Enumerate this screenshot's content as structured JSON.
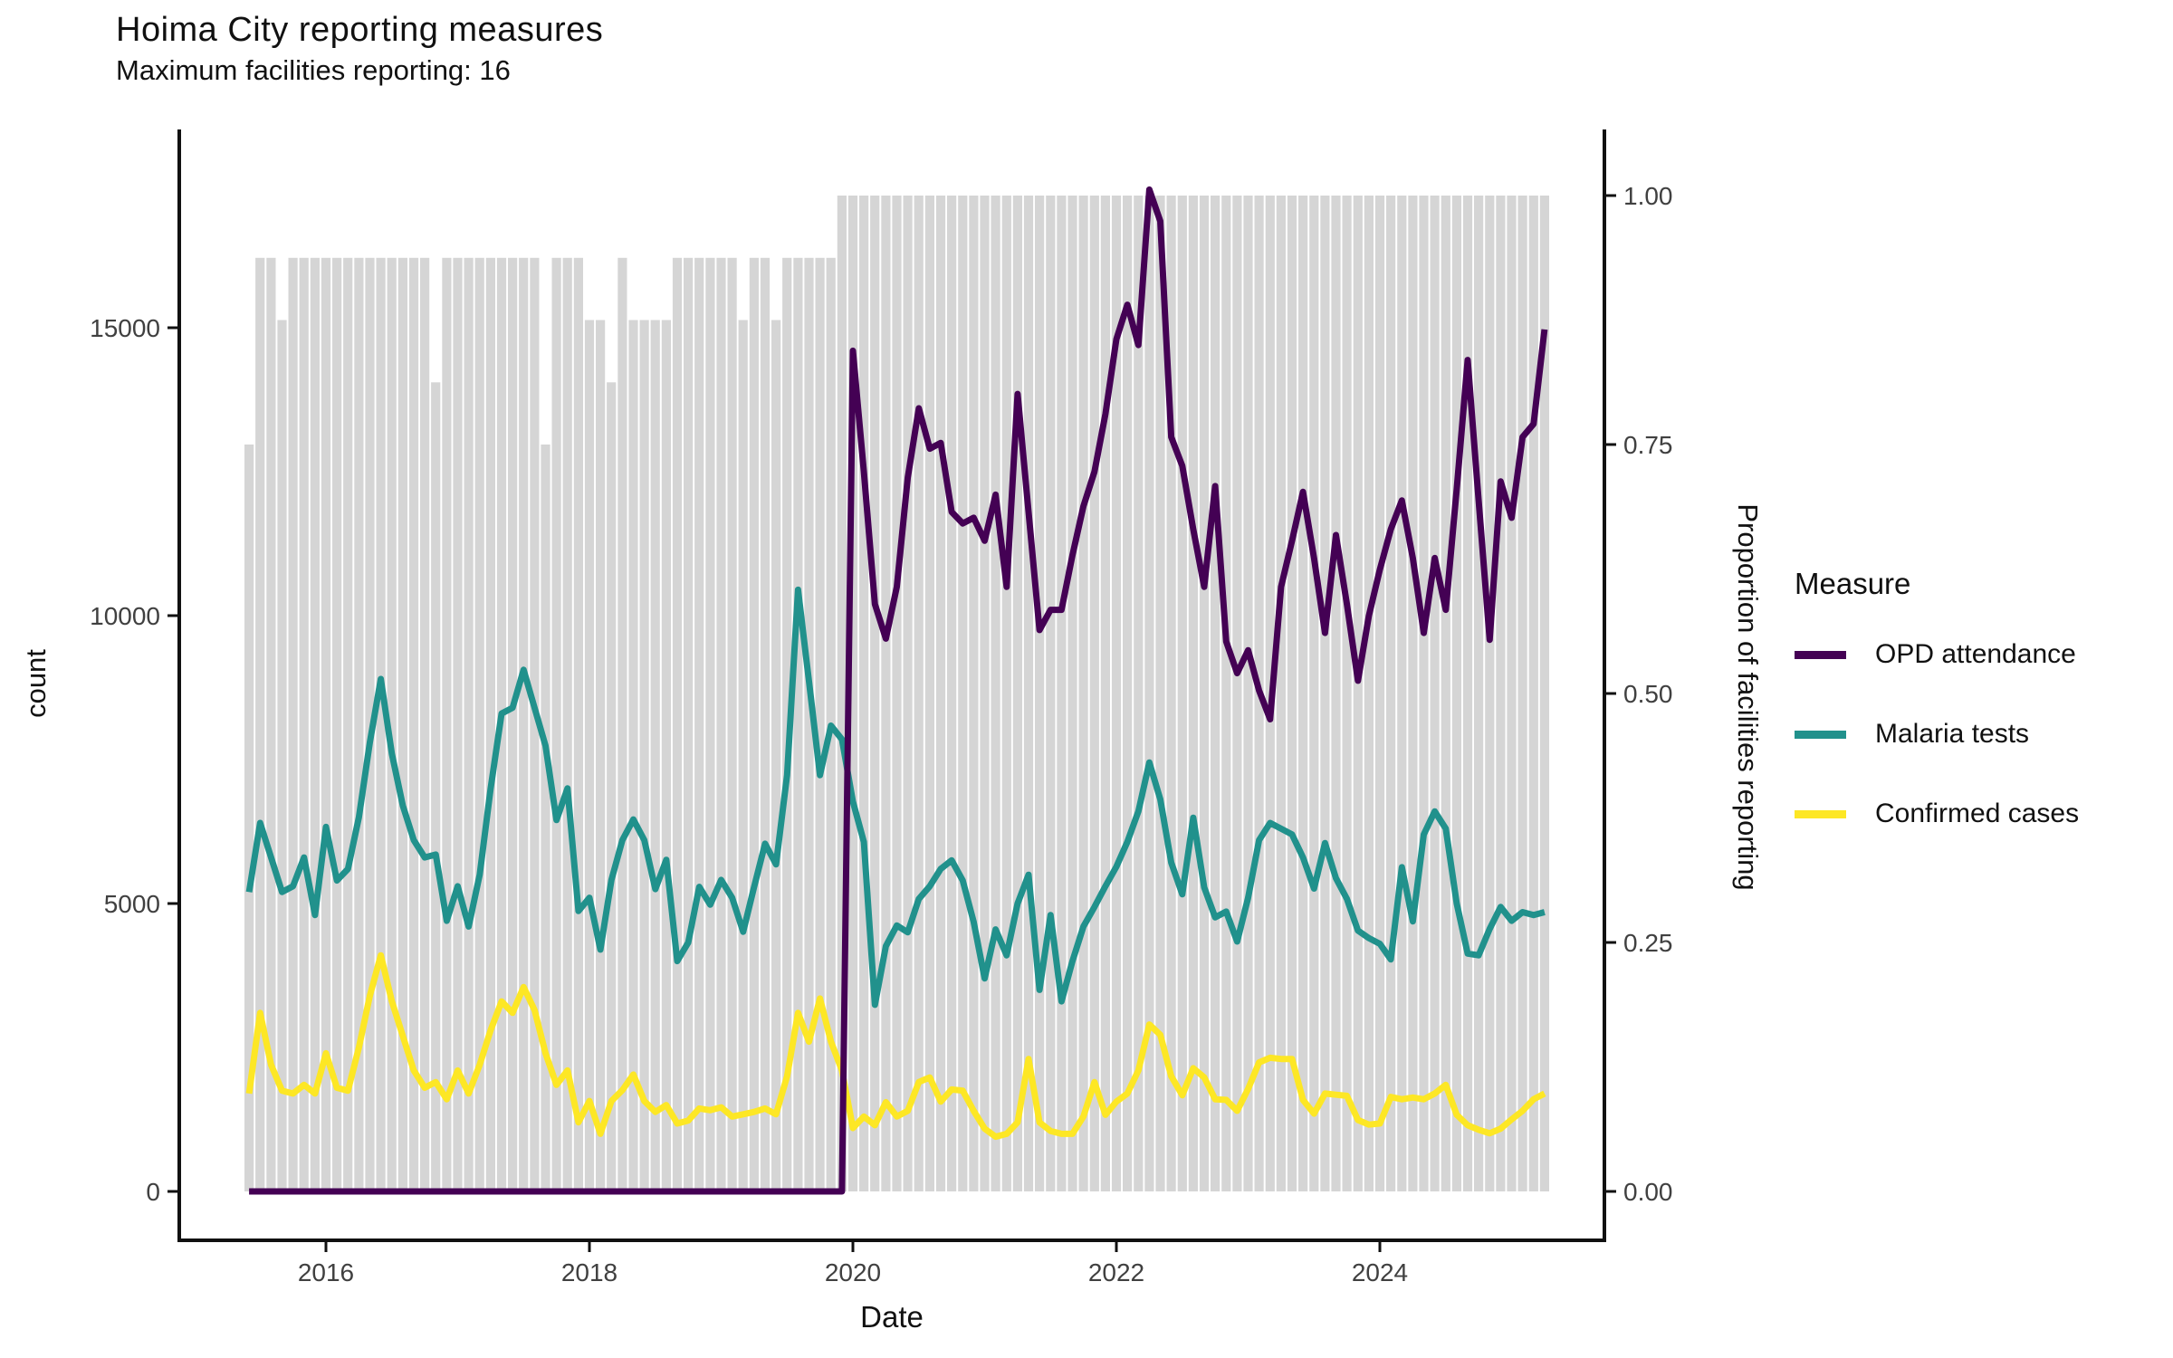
{
  "header": {
    "title": "Hoima City reporting measures",
    "subtitle": "Maximum facilities reporting: 16"
  },
  "chart_data": {
    "type": "line",
    "title": "Hoima City reporting measures",
    "subtitle": "Maximum facilities reporting: 16",
    "x_axis": {
      "label": "Date",
      "ticks": [
        "2016",
        "2018",
        "2020",
        "2022",
        "2024"
      ],
      "tick_years": [
        2016,
        2018,
        2020,
        2022,
        2024
      ]
    },
    "left_axis": {
      "label": "count",
      "ticks": [
        0,
        5000,
        10000,
        15000
      ],
      "tick_labels": [
        "0",
        "5000",
        "10000",
        "15000"
      ],
      "range": [
        0,
        18500
      ],
      "grid": false
    },
    "right_axis": {
      "label": "Proportion of facilities reporting",
      "ticks": [
        0,
        0.25,
        0.5,
        0.75,
        1.0
      ],
      "tick_labels": [
        "0.00",
        "0.25",
        "0.50",
        "0.75",
        "1.00"
      ],
      "range": [
        0,
        1.07
      ]
    },
    "legend": {
      "title": "Measure",
      "position": "right"
    },
    "max_facilities": 16,
    "months": [
      "2015-06",
      "2015-07",
      "2015-08",
      "2015-09",
      "2015-10",
      "2015-11",
      "2015-12",
      "2016-01",
      "2016-02",
      "2016-03",
      "2016-04",
      "2016-05",
      "2016-06",
      "2016-07",
      "2016-08",
      "2016-09",
      "2016-10",
      "2016-11",
      "2016-12",
      "2017-01",
      "2017-02",
      "2017-03",
      "2017-04",
      "2017-05",
      "2017-06",
      "2017-07",
      "2017-08",
      "2017-09",
      "2017-10",
      "2017-11",
      "2017-12",
      "2018-01",
      "2018-02",
      "2018-03",
      "2018-04",
      "2018-05",
      "2018-06",
      "2018-07",
      "2018-08",
      "2018-09",
      "2018-10",
      "2018-11",
      "2018-12",
      "2019-01",
      "2019-02",
      "2019-03",
      "2019-04",
      "2019-05",
      "2019-06",
      "2019-07",
      "2019-08",
      "2019-09",
      "2019-10",
      "2019-11",
      "2019-12",
      "2020-01",
      "2020-02",
      "2020-03",
      "2020-04",
      "2020-05",
      "2020-06",
      "2020-07",
      "2020-08",
      "2020-09",
      "2020-10",
      "2020-11",
      "2020-12",
      "2021-01",
      "2021-02",
      "2021-03",
      "2021-04",
      "2021-05",
      "2021-06",
      "2021-07",
      "2021-08",
      "2021-09",
      "2021-10",
      "2021-11",
      "2021-12",
      "2022-01",
      "2022-02",
      "2022-03",
      "2022-04",
      "2022-05",
      "2022-06",
      "2022-07",
      "2022-08",
      "2022-09",
      "2022-10",
      "2022-11",
      "2022-12",
      "2023-01",
      "2023-02",
      "2023-03",
      "2023-04",
      "2023-05",
      "2023-06",
      "2023-07",
      "2023-08",
      "2023-09",
      "2023-10",
      "2023-11",
      "2023-12",
      "2024-01",
      "2024-02",
      "2024-03",
      "2024-04",
      "2024-05",
      "2024-06",
      "2024-07",
      "2024-08",
      "2024-09",
      "2024-10",
      "2024-11",
      "2024-12",
      "2025-01",
      "2025-02",
      "2025-03",
      "2025-04"
    ],
    "bars": {
      "name": "Proportion of facilities reporting",
      "axis": "right",
      "color": "#d5d5d5",
      "values": [
        0.75,
        0.9375,
        0.9375,
        0.875,
        0.9375,
        0.9375,
        0.9375,
        0.9375,
        0.9375,
        0.9375,
        0.9375,
        0.9375,
        0.9375,
        0.9375,
        0.9375,
        0.9375,
        0.9375,
        0.8125,
        0.9375,
        0.9375,
        0.9375,
        0.9375,
        0.9375,
        0.9375,
        0.9375,
        0.9375,
        0.9375,
        0.75,
        0.9375,
        0.9375,
        0.9375,
        0.875,
        0.875,
        0.8125,
        0.9375,
        0.875,
        0.875,
        0.875,
        0.875,
        0.9375,
        0.9375,
        0.9375,
        0.9375,
        0.9375,
        0.9375,
        0.875,
        0.9375,
        0.9375,
        0.875,
        0.9375,
        0.9375,
        0.9375,
        0.9375,
        0.9375,
        1,
        1,
        1,
        1,
        1,
        1,
        1,
        1,
        1,
        1,
        1,
        1,
        1,
        1,
        1,
        1,
        1,
        1,
        1,
        1,
        1,
        1,
        1,
        1,
        1,
        1,
        1,
        1,
        1,
        1,
        1,
        1,
        1,
        1,
        1,
        1,
        1,
        1,
        1,
        1,
        1,
        1,
        1,
        1,
        1,
        1,
        1,
        1,
        1,
        1,
        1,
        1,
        1,
        1,
        1,
        1,
        1,
        1,
        1,
        1,
        1,
        1,
        1,
        1,
        1
      ]
    },
    "series": [
      {
        "name": "OPD attendance",
        "color": "#440154",
        "axis": "left",
        "values": [
          0,
          0,
          0,
          0,
          0,
          0,
          0,
          0,
          0,
          0,
          0,
          0,
          0,
          0,
          0,
          0,
          0,
          0,
          0,
          0,
          0,
          0,
          0,
          0,
          0,
          0,
          0,
          0,
          0,
          0,
          0,
          0,
          0,
          0,
          0,
          0,
          0,
          0,
          0,
          0,
          0,
          0,
          0,
          0,
          0,
          0,
          0,
          0,
          0,
          0,
          0,
          0,
          0,
          0,
          0,
          14600,
          12500,
          10200,
          9600,
          10500,
          12400,
          13600,
          12900,
          13000,
          11800,
          11600,
          11700,
          11300,
          12100,
          10500,
          13850,
          11800,
          9750,
          10100,
          10100,
          11050,
          11900,
          12500,
          13500,
          14800,
          15400,
          14700,
          17400,
          16850,
          13100,
          12600,
          11500,
          10500,
          12250,
          9550,
          9000,
          9400,
          8700,
          8200,
          10500,
          11300,
          12150,
          11000,
          9700,
          11400,
          10200,
          8870,
          10000,
          10800,
          11500,
          12000,
          11000,
          9700,
          11000,
          10100,
          12200,
          14440,
          12000,
          9580,
          12330,
          11700,
          13100,
          13330,
          14970
        ]
      },
      {
        "name": "Malaria tests",
        "color": "#21918c",
        "axis": "left",
        "values": [
          5200,
          6400,
          5800,
          5200,
          5300,
          5800,
          4800,
          6330,
          5400,
          5600,
          6500,
          7800,
          8900,
          7600,
          6700,
          6100,
          5800,
          5850,
          4700,
          5300,
          4600,
          5500,
          7000,
          8300,
          8400,
          9060,
          8400,
          7740,
          6450,
          7000,
          4870,
          5100,
          4200,
          5410,
          6100,
          6460,
          6100,
          5250,
          5760,
          4000,
          4320,
          5290,
          4980,
          5410,
          5100,
          4510,
          5290,
          6040,
          5680,
          7230,
          10450,
          8860,
          7230,
          8090,
          7850,
          6770,
          6070,
          3240,
          4260,
          4620,
          4500,
          5080,
          5300,
          5600,
          5750,
          5400,
          4680,
          3700,
          4550,
          4100,
          5000,
          5500,
          3500,
          4800,
          3300,
          4000,
          4600,
          4940,
          5300,
          5640,
          6070,
          6600,
          7450,
          6810,
          5710,
          5160,
          6490,
          5280,
          4760,
          4860,
          4340,
          5100,
          6100,
          6400,
          6300,
          6200,
          5800,
          5260,
          6050,
          5440,
          5080,
          4530,
          4400,
          4300,
          4030,
          5630,
          4690,
          6200,
          6600,
          6300,
          5000,
          4130,
          4100,
          4560,
          4940,
          4700,
          4850,
          4800,
          4850
        ]
      },
      {
        "name": "Confirmed cases",
        "color": "#fde725",
        "axis": "left",
        "values": [
          1700,
          3100,
          2200,
          1750,
          1700,
          1850,
          1700,
          2400,
          1800,
          1750,
          2500,
          3400,
          4100,
          3300,
          2700,
          2100,
          1800,
          1900,
          1600,
          2100,
          1700,
          2200,
          2800,
          3300,
          3100,
          3550,
          3150,
          2400,
          1850,
          2100,
          1200,
          1570,
          1000,
          1570,
          1760,
          2030,
          1570,
          1380,
          1500,
          1180,
          1230,
          1440,
          1410,
          1460,
          1300,
          1340,
          1380,
          1440,
          1340,
          2000,
          3100,
          2600,
          3350,
          2600,
          2100,
          1100,
          1300,
          1150,
          1550,
          1300,
          1400,
          1900,
          1980,
          1560,
          1770,
          1750,
          1400,
          1090,
          950,
          1000,
          1200,
          2300,
          1200,
          1050,
          1000,
          1000,
          1300,
          1900,
          1330,
          1560,
          1700,
          2100,
          2900,
          2720,
          2000,
          1670,
          2140,
          1980,
          1600,
          1590,
          1400,
          1780,
          2240,
          2320,
          2300,
          2300,
          1590,
          1350,
          1700,
          1680,
          1660,
          1240,
          1160,
          1180,
          1640,
          1600,
          1630,
          1600,
          1700,
          1850,
          1330,
          1150,
          1070,
          1010,
          1090,
          1250,
          1400,
          1600,
          1700
        ]
      }
    ]
  },
  "colors": {
    "opd": "#440154",
    "malaria": "#21918c",
    "confirmed": "#fde725",
    "bars": "#d5d5d5",
    "axis": "#111111",
    "tick_label": "#404040",
    "background": "#ffffff"
  }
}
